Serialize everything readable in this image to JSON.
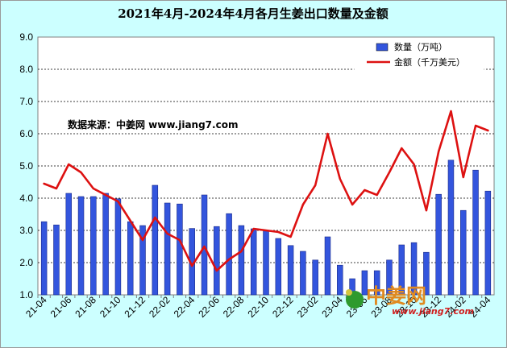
{
  "chart_data": {
    "type": "bar+line",
    "title": "2021年4月-2024年4月各月生姜出口数量及金额",
    "ylim": [
      1.0,
      9.0
    ],
    "yticks": [
      "1.0",
      "2.0",
      "3.0",
      "4.0",
      "5.0",
      "6.0",
      "7.0",
      "8.0",
      "9.0"
    ],
    "xtick_labels": [
      "21-04",
      "21-06",
      "21-08",
      "21-10",
      "21-12",
      "22-02",
      "22-04",
      "22-06",
      "22-08",
      "22-10",
      "22-12",
      "23-02",
      "23-04",
      "23-06",
      "23-08",
      "23-10",
      "23-12",
      "24-02",
      "24-04"
    ],
    "categories": [
      "21-04",
      "21-05",
      "21-06",
      "21-07",
      "21-08",
      "21-09",
      "21-10",
      "21-11",
      "21-12",
      "22-01",
      "22-02",
      "22-03",
      "22-04",
      "22-05",
      "22-06",
      "22-07",
      "22-08",
      "22-09",
      "22-10",
      "22-11",
      "22-12",
      "23-01",
      "23-02",
      "23-03",
      "23-04",
      "23-05",
      "23-06",
      "23-07",
      "23-08",
      "23-09",
      "23-10",
      "23-11",
      "23-12",
      "24-01",
      "24-02",
      "24-03",
      "24-04"
    ],
    "grid": true,
    "legend_position": "top-right",
    "series": [
      {
        "name": "数量（万吨）",
        "type": "bar",
        "color": "#3355dd",
        "values": [
          3.27,
          3.17,
          4.15,
          4.05,
          4.05,
          4.15,
          3.98,
          3.27,
          3.15,
          4.4,
          3.85,
          3.82,
          3.06,
          4.1,
          3.12,
          3.52,
          3.15,
          3.05,
          2.98,
          2.75,
          2.53,
          2.35,
          2.08,
          2.8,
          1.92,
          1.5,
          1.75,
          1.75,
          2.08,
          2.55,
          2.62,
          2.32,
          4.12,
          5.18,
          3.62,
          4.87,
          4.22
        ]
      },
      {
        "name": "金额（千万美元）",
        "type": "line",
        "color": "#dd1111",
        "values": [
          4.45,
          4.3,
          5.05,
          4.8,
          4.3,
          4.1,
          3.9,
          3.3,
          2.7,
          3.4,
          2.9,
          2.7,
          1.9,
          2.5,
          1.75,
          2.1,
          2.35,
          3.05,
          3.0,
          2.95,
          2.8,
          3.8,
          4.4,
          6.0,
          4.6,
          3.8,
          4.25,
          4.1,
          4.8,
          5.55,
          5.05,
          3.62,
          5.45,
          6.7,
          4.65,
          6.25,
          6.1
        ]
      }
    ],
    "annotation": "数据来源：中姜网 www.jiang7.com"
  },
  "watermark": {
    "logo_text": "中姜网",
    "url": "www.jiang7.com"
  }
}
